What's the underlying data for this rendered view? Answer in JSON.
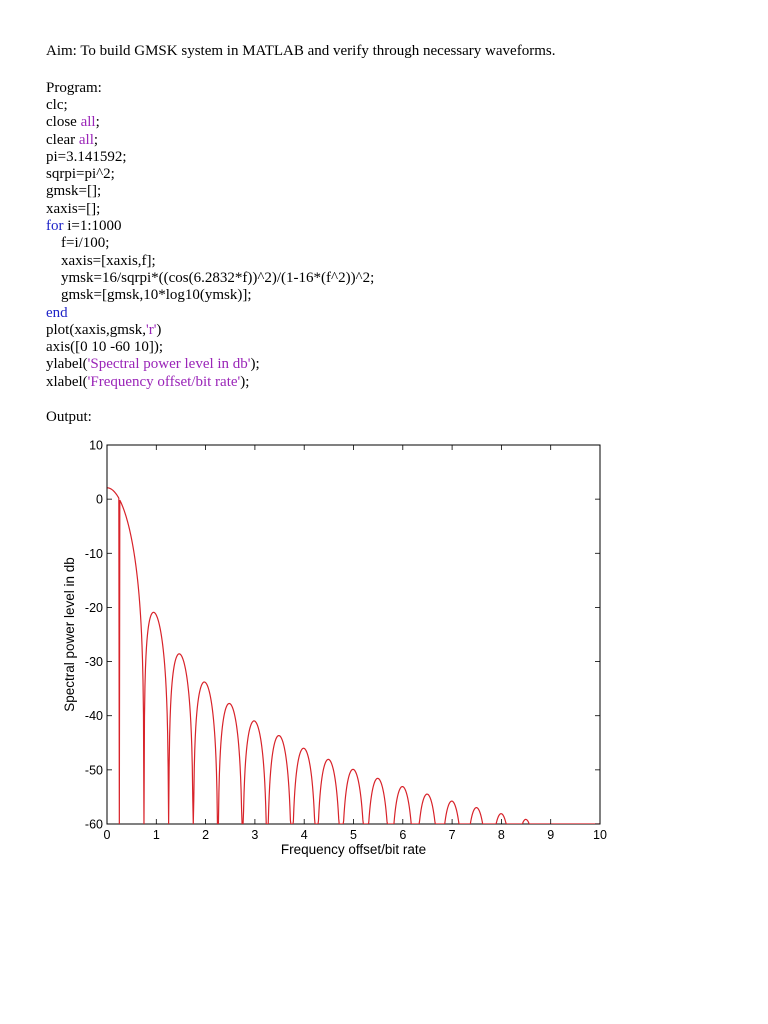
{
  "document": {
    "aim": "Aim: To build GMSK system in MATLAB and verify through necessary waveforms.",
    "program_label": "Program:",
    "output_label": "Output:",
    "code_lines": [
      {
        "parts": [
          {
            "t": "clc;",
            "c": "plain"
          }
        ],
        "indent": false
      },
      {
        "parts": [
          {
            "t": "close ",
            "c": "plain"
          },
          {
            "t": "all",
            "c": "str"
          },
          {
            "t": ";",
            "c": "plain"
          }
        ],
        "indent": false
      },
      {
        "parts": [
          {
            "t": "clear ",
            "c": "plain"
          },
          {
            "t": "all",
            "c": "str"
          },
          {
            "t": ";",
            "c": "plain"
          }
        ],
        "indent": false
      },
      {
        "parts": [
          {
            "t": "pi=3.141592;",
            "c": "plain"
          }
        ],
        "indent": false
      },
      {
        "parts": [
          {
            "t": "sqrpi=pi^2;",
            "c": "plain"
          }
        ],
        "indent": false
      },
      {
        "parts": [
          {
            "t": "gmsk=[];",
            "c": "plain"
          }
        ],
        "indent": false
      },
      {
        "parts": [
          {
            "t": "xaxis=[];",
            "c": "plain"
          }
        ],
        "indent": false
      },
      {
        "parts": [
          {
            "t": "for",
            "c": "kw"
          },
          {
            "t": " i=1:1000",
            "c": "plain"
          }
        ],
        "indent": false
      },
      {
        "parts": [
          {
            "t": "f=i/100;",
            "c": "plain"
          }
        ],
        "indent": true
      },
      {
        "parts": [
          {
            "t": "xaxis=[xaxis,f];",
            "c": "plain"
          }
        ],
        "indent": true
      },
      {
        "parts": [
          {
            "t": "ymsk=16/sqrpi*((cos(6.2832*f))^2)/(1-16*(f^2))^2;",
            "c": "plain"
          }
        ],
        "indent": true
      },
      {
        "parts": [
          {
            "t": "gmsk=[gmsk,10*log10(ymsk)];",
            "c": "plain"
          }
        ],
        "indent": true
      },
      {
        "parts": [
          {
            "t": "end",
            "c": "kw"
          }
        ],
        "indent": false
      },
      {
        "parts": [
          {
            "t": "plot(xaxis,gmsk,",
            "c": "plain"
          },
          {
            "t": "'r'",
            "c": "str"
          },
          {
            "t": ")",
            "c": "plain"
          }
        ],
        "indent": false
      },
      {
        "parts": [
          {
            "t": "axis([0 10 -60 10]);",
            "c": "plain"
          }
        ],
        "indent": false
      },
      {
        "parts": [
          {
            "t": "ylabel(",
            "c": "plain"
          },
          {
            "t": "'Spectral power level in db'",
            "c": "str"
          },
          {
            "t": ");",
            "c": "plain"
          }
        ],
        "indent": false
      },
      {
        "parts": [
          {
            "t": "xlabel(",
            "c": "plain"
          },
          {
            "t": "'Frequency offset/bit rate'",
            "c": "str"
          },
          {
            "t": ");",
            "c": "plain"
          }
        ],
        "indent": false
      }
    ],
    "colors": {
      "keyword": "#1f24c8",
      "string": "#9a25b8",
      "plot_line": "#d8232a"
    }
  },
  "chart_data": {
    "type": "line",
    "title": "",
    "xlabel": "Frequency offset/bit rate",
    "ylabel": "Spectral power level in db",
    "xlim": [
      0,
      10
    ],
    "ylim": [
      -60,
      10
    ],
    "xticks": [
      "0",
      "1",
      "2",
      "3",
      "4",
      "5",
      "6",
      "7",
      "8",
      "9",
      "10"
    ],
    "yticks": [
      "10",
      "0",
      "-10",
      "-20",
      "-30",
      "-40",
      "-50",
      "-60"
    ],
    "grid": false,
    "series": [
      {
        "formula": "10*log10(16/pi^2*(cos(6.2832*f))^2/(1-16*f^2)^2)",
        "x_start": 0.01,
        "x_end": 10,
        "x_step": 0.01,
        "color": "#d8232a",
        "values_sample": [
          {
            "x": 0.01,
            "y": 2.1
          },
          {
            "x": 0.5,
            "y": -10.0
          },
          {
            "x": 0.75,
            "y": -60
          },
          {
            "x": 1.0,
            "y": -21.0
          },
          {
            "x": 1.5,
            "y": -28.5
          },
          {
            "x": 2.0,
            "y": -33.6
          },
          {
            "x": 2.5,
            "y": -37.6
          },
          {
            "x": 3.0,
            "y": -40.9
          },
          {
            "x": 4.0,
            "y": -46.0
          },
          {
            "x": 5.0,
            "y": -50.0
          },
          {
            "x": 6.0,
            "y": -53.2
          },
          {
            "x": 7.0,
            "y": -55.9
          },
          {
            "x": 8.0,
            "y": -58.2
          },
          {
            "x": 8.5,
            "y": -59.3
          }
        ]
      }
    ]
  }
}
